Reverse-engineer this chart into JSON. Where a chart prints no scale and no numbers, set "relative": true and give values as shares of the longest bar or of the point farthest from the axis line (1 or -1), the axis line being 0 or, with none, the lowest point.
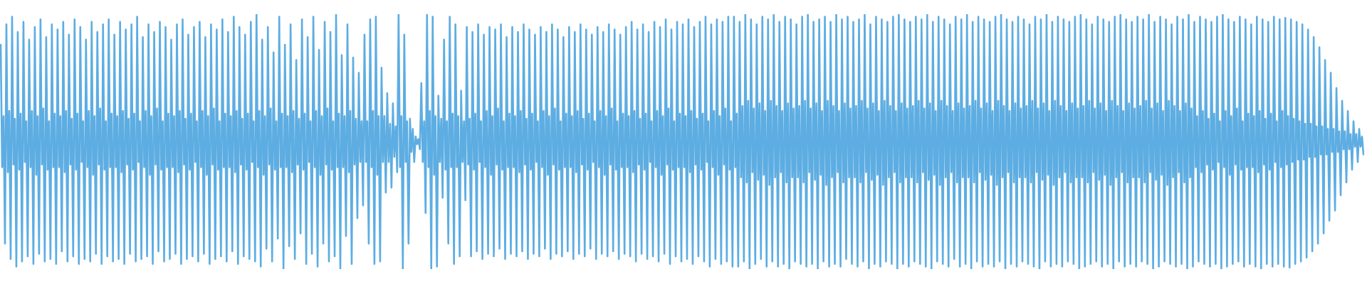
{
  "chart_data": {
    "type": "line",
    "relative": true,
    "color": "#5dade2",
    "categories": [
      null,
      null,
      null,
      null,
      null,
      null,
      null,
      null,
      null,
      null,
      null,
      null,
      null,
      null,
      null,
      null,
      null,
      null,
      null,
      null,
      null,
      null,
      null,
      null,
      null,
      null,
      null,
      null,
      null,
      null,
      null,
      null,
      null,
      null,
      null,
      null,
      null,
      null,
      null,
      null,
      null,
      null,
      null,
      null,
      null,
      null,
      null,
      null,
      null,
      null,
      null,
      null,
      null,
      null,
      null,
      null,
      null,
      null,
      null,
      null,
      null,
      null,
      null,
      null,
      null,
      null,
      null,
      null,
      null,
      null,
      null,
      null,
      null,
      null,
      null,
      null,
      null,
      null,
      null,
      null,
      null,
      null,
      null,
      null,
      null,
      null,
      null,
      null,
      null,
      null,
      null,
      null,
      null,
      null,
      null,
      null,
      null,
      null,
      null,
      null,
      null,
      null,
      null,
      null,
      null,
      null,
      null,
      null,
      null,
      null,
      null,
      null,
      null,
      null,
      null,
      null,
      null,
      null,
      null,
      null,
      null,
      null,
      null,
      null,
      null,
      null,
      null,
      null,
      null,
      null,
      null,
      null,
      null,
      null,
      null,
      null,
      null,
      null,
      null,
      null,
      null,
      null,
      null,
      null,
      null,
      null,
      null,
      null,
      null,
      null,
      null,
      null,
      null,
      null,
      null,
      null,
      null,
      null,
      null,
      null,
      null,
      null,
      null,
      null,
      null,
      null,
      null,
      null,
      null,
      null,
      null,
      null,
      null,
      null,
      null,
      null,
      null,
      null,
      null,
      null,
      null,
      null,
      null,
      null,
      null,
      null,
      null,
      null,
      null,
      null,
      null,
      null,
      null,
      null,
      null,
      null,
      null,
      null,
      null,
      null,
      null,
      null,
      null,
      null,
      null,
      null,
      null,
      null,
      null,
      null,
      null,
      null,
      null,
      null,
      null,
      null,
      null,
      null,
      null,
      null,
      null,
      null,
      null,
      null,
      null,
      null,
      null,
      null,
      null,
      null,
      null,
      null,
      null,
      null,
      null,
      null,
      null,
      null,
      null,
      null,
      null,
      null,
      null,
      null,
      null,
      null,
      null,
      null,
      null,
      null,
      null,
      null,
      null,
      null,
      null,
      null,
      null,
      null,
      null,
      null,
      null,
      null,
      null,
      null,
      null,
      null,
      null,
      null,
      null,
      null,
      null,
      null,
      null,
      null,
      null,
      null,
      null,
      null,
      null,
      null,
      null,
      null,
      null,
      null,
      null,
      null,
      null,
      null,
      null,
      null,
      null,
      null,
      null,
      null,
      null,
      null,
      null,
      null,
      null,
      null,
      null,
      null,
      null,
      null,
      null,
      null,
      null,
      null,
      null,
      null,
      null,
      null,
      null,
      null,
      null,
      null,
      null,
      null,
      null,
      null,
      null,
      null,
      null,
      null,
      null,
      null,
      null,
      null,
      null,
      null,
      null,
      null,
      null,
      null,
      null,
      null,
      null,
      null,
      null,
      null,
      null,
      null,
      null,
      null,
      null,
      null,
      null,
      null,
      null,
      null,
      null,
      null,
      null,
      null,
      null,
      null,
      null,
      null,
      null,
      null,
      null,
      null,
      null,
      null,
      null,
      null,
      null,
      null,
      null,
      null,
      null,
      null,
      null,
      null,
      null,
      null,
      null,
      null,
      null,
      null,
      null,
      null,
      null,
      null,
      null,
      null,
      null,
      null,
      null,
      null,
      null,
      null,
      null,
      null,
      null,
      null,
      null,
      null,
      null,
      null,
      null,
      null,
      null,
      null,
      null,
      null,
      null,
      null,
      null,
      null,
      null,
      null,
      null,
      null,
      null,
      null,
      null,
      null,
      null,
      null,
      null,
      null,
      null,
      null,
      null,
      null,
      null,
      null,
      null,
      null,
      null,
      null,
      null,
      null,
      null,
      null,
      null,
      null,
      null,
      null,
      null,
      null,
      null,
      null,
      null,
      null,
      null,
      null,
      null,
      null,
      null,
      null,
      null,
      null,
      null,
      null,
      null,
      null,
      null,
      null,
      null,
      null,
      null,
      null,
      null,
      null,
      null,
      null,
      null,
      null,
      null,
      null,
      null,
      null,
      null,
      null,
      null,
      null,
      null,
      null,
      null,
      null,
      null,
      null,
      null,
      null,
      null,
      null,
      null,
      null,
      null,
      null,
      null,
      null,
      null,
      null,
      null,
      null,
      null,
      null,
      null,
      null,
      null,
      null,
      null,
      null,
      null,
      null,
      null,
      null,
      null,
      null,
      null,
      null,
      null,
      null,
      null,
      null,
      null,
      null,
      null,
      null,
      null,
      null,
      null,
      null,
      null,
      null,
      null,
      null,
      null,
      null,
      null,
      null,
      null,
      null,
      null,
      null,
      null,
      null,
      null,
      null,
      null,
      null,
      null,
      null,
      null,
      null,
      null,
      null,
      null,
      null,
      null,
      null,
      null,
      null,
      null,
      null,
      null,
      null,
      null,
      null,
      null,
      null,
      null,
      null,
      null,
      null,
      null,
      null,
      null,
      null,
      null,
      null,
      null,
      null,
      null,
      null,
      null,
      null,
      null,
      null,
      null,
      null,
      null,
      null,
      null,
      null,
      null,
      null,
      null,
      null,
      null,
      null,
      null,
      null,
      null,
      null,
      null,
      null,
      null,
      null,
      null,
      null,
      null,
      null,
      null,
      null,
      null,
      null,
      null,
      null,
      null,
      null,
      null,
      null,
      null,
      null,
      null,
      null,
      null,
      null,
      null,
      null,
      null,
      null,
      null,
      null,
      null,
      null,
      null,
      null,
      null,
      null,
      null,
      null,
      null,
      null,
      null,
      null,
      null,
      null,
      null,
      null,
      null,
      null,
      null,
      null,
      null,
      null,
      null,
      null,
      null,
      null,
      null,
      null,
      null,
      null,
      null,
      null,
      null,
      null,
      null,
      null,
      null,
      null,
      null,
      null,
      null,
      null,
      null,
      null,
      null,
      null,
      null,
      null,
      null,
      null,
      null,
      null,
      null,
      null,
      null,
      null,
      null,
      null,
      null,
      null,
      null,
      null,
      null,
      null,
      null,
      null,
      null,
      null,
      null,
      null,
      null,
      null,
      null,
      null,
      null,
      null,
      null,
      null,
      null,
      null,
      null,
      null,
      null,
      null,
      null,
      null,
      null,
      null,
      null,
      null,
      null,
      null,
      null,
      null,
      null,
      null,
      null,
      null,
      null,
      null,
      null,
      null,
      null,
      null,
      null,
      null,
      null,
      null,
      null,
      null,
      null,
      null,
      null,
      null,
      null,
      null,
      null,
      null,
      null,
      null,
      null,
      null,
      null,
      null,
      null,
      null,
      null,
      null,
      null,
      null,
      null,
      null,
      null,
      null,
      null,
      null,
      null,
      null,
      null,
      null,
      null,
      null,
      null,
      null,
      null,
      null,
      null,
      null,
      null,
      null,
      null,
      null,
      null,
      null,
      null,
      null,
      null,
      null,
      null,
      null,
      null,
      null,
      null,
      null,
      null,
      null,
      null,
      null,
      null,
      null,
      null,
      null,
      null,
      null,
      null,
      null,
      null,
      null,
      null,
      null,
      null,
      null,
      null,
      null,
      null,
      null,
      null,
      null,
      null,
      null,
      null,
      null,
      null,
      null,
      null,
      null,
      null,
      null,
      null,
      null,
      null,
      null,
      null,
      null,
      null,
      null,
      null,
      null,
      null,
      null,
      null,
      null,
      null,
      null,
      null,
      null,
      null,
      null,
      null,
      null,
      null,
      null,
      null,
      null,
      null,
      null,
      null,
      null,
      null,
      null,
      null,
      null,
      null,
      null,
      null,
      null,
      null,
      null,
      null,
      null,
      null,
      null,
      null,
      null,
      null,
      null,
      null,
      null,
      null,
      null,
      null,
      null,
      null,
      null,
      null,
      null,
      null,
      null,
      null,
      null,
      null,
      null,
      null,
      null,
      null,
      null,
      null,
      null,
      null,
      null,
      null,
      null,
      null,
      null,
      null,
      null,
      null,
      null,
      null,
      null,
      null,
      null,
      null,
      null,
      null,
      null,
      null,
      null,
      null,
      null,
      null,
      null,
      null,
      null,
      null,
      null,
      null,
      null,
      null,
      null,
      null,
      null,
      null,
      null,
      null,
      null,
      null,
      null,
      null,
      null,
      null,
      null,
      null,
      null,
      null,
      null,
      null,
      null,
      null,
      null,
      null,
      null,
      null,
      null,
      null,
      null,
      null,
      null,
      null,
      null,
      null,
      null
    ],
    "values": [
      0.88,
      0.4,
      0.6,
      0.1,
      0.96,
      0.38,
      0.62,
      0.04,
      0.99,
      0.41,
      0.59,
      0.01,
      0.93,
      0.39,
      0.61,
      0.03,
      0.97,
      0.42,
      0.58,
      0.05,
      0.9,
      0.4,
      0.62,
      0.02,
      0.95,
      0.37,
      0.6,
      0.06,
      0.98,
      0.41,
      0.63,
      0.03,
      0.91,
      0.39,
      0.58,
      0.04,
      0.96,
      0.4,
      0.61,
      0.02,
      0.94,
      0.4,
      0.6,
      0.07,
      0.97,
      0.38,
      0.62,
      0.03,
      0.92,
      0.41,
      0.59,
      0.05,
      0.98,
      0.39,
      0.61,
      0.02,
      0.95,
      0.42,
      0.58,
      0.04,
      0.9,
      0.4,
      0.62,
      0.03,
      0.97,
      0.37,
      0.6,
      0.06,
      0.93,
      0.41,
      0.63,
      0.02,
      0.96,
      0.39,
      0.58,
      0.05,
      0.98,
      0.4,
      0.61,
      0.03,
      0.92,
      0.4,
      0.6,
      0.04,
      0.97,
      0.38,
      0.62,
      0.02,
      0.94,
      0.41,
      0.59,
      0.06,
      0.96,
      0.39,
      0.61,
      0.03,
      0.99,
      0.42,
      0.58,
      0.04,
      0.91,
      0.4,
      0.62,
      0.05,
      0.96,
      0.37,
      0.6,
      0.02,
      0.93,
      0.41,
      0.63,
      0.07,
      0.97,
      0.39,
      0.58,
      0.03,
      0.95,
      0.4,
      0.61,
      0.04,
      0.9,
      0.4,
      0.6,
      0.06,
      0.96,
      0.38,
      0.62,
      0.02,
      0.98,
      0.41,
      0.59,
      0.04,
      0.92,
      0.39,
      0.61,
      0.05,
      0.95,
      0.42,
      0.58,
      0.03,
      0.97,
      0.4,
      0.62,
      0.06,
      0.91,
      0.37,
      0.6,
      0.02,
      0.96,
      0.41,
      0.63,
      0.04,
      0.94,
      0.39,
      0.58,
      0.05,
      0.98,
      0.4,
      0.61,
      0.03,
      0.93,
      0.4,
      0.6,
      0.07,
      0.99,
      0.38,
      0.62,
      0.02,
      0.95,
      0.41,
      0.59,
      0.05,
      0.92,
      0.39,
      0.61,
      0.04,
      0.97,
      0.42,
      0.58,
      0.03,
      1.0,
      0.4,
      0.62,
      0.01,
      0.9,
      0.37,
      0.6,
      0.08,
      0.95,
      0.41,
      0.63,
      0.03,
      0.85,
      0.39,
      0.58,
      0.12,
      0.99,
      0.4,
      0.61,
      0.0,
      0.88,
      0.4,
      0.6,
      0.09,
      0.96,
      0.38,
      0.62,
      0.04,
      0.82,
      0.41,
      0.59,
      0.14,
      0.98,
      0.39,
      0.61,
      0.02,
      0.91,
      0.42,
      0.58,
      0.06,
      0.99,
      0.4,
      0.62,
      0.01,
      0.86,
      0.37,
      0.6,
      0.1,
      0.97,
      0.41,
      0.63,
      0.03,
      0.93,
      0.39,
      0.58,
      0.05,
      1.0,
      0.4,
      0.61,
      0.0,
      0.84,
      0.4,
      0.6,
      0.13,
      0.96,
      0.38,
      0.62,
      0.02,
      0.83,
      0.41,
      0.59,
      0.2,
      0.77,
      0.42,
      0.58,
      0.25,
      0.92,
      0.42,
      0.58,
      0.1,
      0.98,
      0.4,
      0.62,
      0.02,
      0.99,
      0.37,
      0.6,
      0.03,
      0.79,
      0.42,
      0.6,
      0.3,
      0.69,
      0.42,
      0.57,
      0.32,
      0.65,
      0.44,
      0.56,
      0.38,
      1.0,
      0.4,
      0.6,
      0.0,
      0.92,
      0.42,
      0.58,
      0.1,
      0.59,
      0.46,
      0.55,
      0.42,
      0.52,
      0.49,
      0.51,
      0.47,
      0.73,
      0.42,
      0.58,
      0.22,
      1.0,
      0.4,
      0.62,
      0.0,
      0.99,
      0.37,
      0.6,
      0.01,
      0.68,
      0.42,
      0.59,
      0.28,
      0.9,
      0.39,
      0.58,
      0.1,
      0.99,
      0.4,
      0.61,
      0.02,
      0.96,
      0.4,
      0.6,
      0.05,
      0.7,
      0.42,
      0.58,
      0.27,
      0.95,
      0.41,
      0.59,
      0.05,
      0.93,
      0.39,
      0.61,
      0.07,
      0.96,
      0.42,
      0.58,
      0.04,
      0.92,
      0.4,
      0.62,
      0.06,
      0.95,
      0.37,
      0.6,
      0.05,
      0.94,
      0.41,
      0.63,
      0.08,
      0.96,
      0.39,
      0.58,
      0.04,
      0.91,
      0.4,
      0.61,
      0.06,
      0.95,
      0.4,
      0.6,
      0.05,
      0.93,
      0.38,
      0.62,
      0.07,
      0.96,
      0.41,
      0.59,
      0.04,
      0.94,
      0.39,
      0.61,
      0.06,
      0.92,
      0.42,
      0.58,
      0.05,
      0.95,
      0.4,
      0.62,
      0.08,
      0.93,
      0.37,
      0.6,
      0.04,
      0.96,
      0.41,
      0.63,
      0.06,
      0.94,
      0.39,
      0.58,
      0.05,
      0.91,
      0.4,
      0.61,
      0.07,
      0.95,
      0.4,
      0.6,
      0.04,
      0.93,
      0.38,
      0.62,
      0.06,
      0.96,
      0.41,
      0.59,
      0.05,
      0.94,
      0.39,
      0.61,
      0.08,
      0.92,
      0.42,
      0.58,
      0.04,
      0.95,
      0.4,
      0.62,
      0.06,
      0.93,
      0.37,
      0.6,
      0.05,
      0.96,
      0.41,
      0.63,
      0.07,
      0.94,
      0.39,
      0.58,
      0.04,
      0.92,
      0.4,
      0.61,
      0.06,
      0.95,
      0.4,
      0.6,
      0.05,
      0.97,
      0.38,
      0.62,
      0.03,
      0.94,
      0.41,
      0.59,
      0.06,
      0.96,
      0.39,
      0.61,
      0.04,
      0.93,
      0.42,
      0.58,
      0.05,
      0.97,
      0.4,
      0.62,
      0.03,
      0.95,
      0.37,
      0.6,
      0.06,
      0.98,
      0.41,
      0.63,
      0.02,
      0.94,
      0.39,
      0.58,
      0.05,
      0.97,
      0.4,
      0.61,
      0.03,
      0.96,
      0.4,
      0.6,
      0.04,
      0.98,
      0.38,
      0.62,
      0.02,
      0.95,
      0.41,
      0.59,
      0.05,
      0.97,
      0.39,
      0.61,
      0.03,
      0.99,
      0.42,
      0.58,
      0.01,
      0.96,
      0.4,
      0.62,
      0.04,
      0.98,
      0.37,
      0.6,
      0.02,
      0.97,
      0.41,
      0.63,
      0.03,
      0.99,
      0.39,
      0.58,
      0.01,
      0.99,
      0.4,
      0.61,
      0.01,
      0.97,
      0.36,
      0.64,
      0.03,
      1.0,
      0.34,
      0.66,
      0.0,
      0.98,
      0.38,
      0.63,
      0.02,
      0.96,
      0.35,
      0.65,
      0.04,
      0.99,
      0.37,
      0.62,
      0.01,
      0.98,
      0.33,
      0.66,
      0.03,
      1.0,
      0.36,
      0.64,
      0.01,
      0.97,
      0.38,
      0.62,
      0.02,
      0.99,
      0.34,
      0.65,
      0.0,
      0.98,
      0.36,
      0.63,
      0.03,
      0.96,
      0.36,
      0.64,
      0.02,
      0.99,
      0.34,
      0.66,
      0.01,
      1.0,
      0.38,
      0.63,
      0.02,
      0.97,
      0.35,
      0.65,
      0.0,
      0.98,
      0.37,
      0.62,
      0.03,
      0.99,
      0.33,
      0.66,
      0.01,
      0.97,
      0.36,
      0.64,
      0.02,
      1.0,
      0.38,
      0.62,
      0.01,
      0.98,
      0.34,
      0.65,
      0.04,
      0.99,
      0.36,
      0.63,
      0.02,
      0.97,
      0.36,
      0.64,
      0.01,
      0.98,
      0.34,
      0.66,
      0.03,
      1.0,
      0.38,
      0.63,
      0.0,
      0.96,
      0.35,
      0.65,
      0.02,
      0.99,
      0.37,
      0.62,
      0.01,
      0.98,
      0.33,
      0.66,
      0.03,
      0.97,
      0.36,
      0.64,
      0.02,
      0.99,
      0.38,
      0.62,
      0.0,
      1.0,
      0.34,
      0.65,
      0.02,
      0.98,
      0.36,
      0.63,
      0.01,
      0.97,
      0.36,
      0.64,
      0.03,
      0.99,
      0.34,
      0.66,
      0.02,
      0.98,
      0.38,
      0.63,
      0.01,
      1.0,
      0.35,
      0.65,
      0.0,
      0.97,
      0.37,
      0.62,
      0.03,
      0.99,
      0.33,
      0.66,
      0.02,
      0.98,
      0.36,
      0.64,
      0.01,
      0.96,
      0.38,
      0.62,
      0.04,
      0.99,
      0.34,
      0.65,
      0.01,
      0.98,
      0.36,
      0.63,
      0.02,
      1.0,
      0.36,
      0.64,
      0.0,
      0.97,
      0.34,
      0.66,
      0.03,
      0.99,
      0.38,
      0.63,
      0.01,
      0.98,
      0.35,
      0.65,
      0.02,
      0.97,
      0.37,
      0.62,
      0.01,
      0.99,
      0.33,
      0.66,
      0.03,
      1.0,
      0.36,
      0.64,
      0.0,
      0.98,
      0.38,
      0.62,
      0.02,
      0.97,
      0.34,
      0.65,
      0.01,
      0.99,
      0.36,
      0.63,
      0.03,
      0.98,
      0.36,
      0.64,
      0.02,
      0.96,
      0.34,
      0.66,
      0.01,
      0.99,
      0.38,
      0.63,
      0.0,
      0.98,
      0.35,
      0.65,
      0.03,
      1.0,
      0.37,
      0.62,
      0.01,
      0.97,
      0.33,
      0.66,
      0.02,
      0.99,
      0.36,
      0.64,
      0.01,
      0.98,
      0.38,
      0.62,
      0.03,
      0.97,
      0.34,
      0.65,
      0.02,
      0.99,
      0.36,
      0.63,
      0.0,
      1.0,
      0.36,
      0.64,
      0.01,
      0.98,
      0.34,
      0.66,
      0.02,
      0.96,
      0.38,
      0.63,
      0.03,
      0.99,
      0.35,
      0.65,
      0.01,
      0.98,
      0.37,
      0.62,
      0.02,
      0.97,
      0.33,
      0.66,
      0.0,
      0.99,
      0.36,
      0.64,
      0.03,
      1.0,
      0.38,
      0.62,
      0.01,
      0.98,
      0.34,
      0.65,
      0.02,
      0.97,
      0.36,
      0.63,
      0.01,
      0.99,
      0.36,
      0.64,
      0.03,
      0.98,
      0.34,
      0.66,
      0.02,
      1.0,
      0.38,
      0.63,
      0.0,
      0.97,
      0.35,
      0.65,
      0.01,
      0.99,
      0.37,
      0.62,
      0.03,
      0.98,
      0.33,
      0.66,
      0.02,
      0.96,
      0.36,
      0.64,
      0.01,
      0.99,
      0.38,
      0.62,
      0.02,
      0.98,
      0.34,
      0.65,
      0.0,
      1.0,
      0.36,
      0.63,
      0.01,
      0.97,
      0.4,
      0.6,
      0.03,
      0.99,
      0.38,
      0.62,
      0.02,
      0.98,
      0.41,
      0.59,
      0.01,
      0.97,
      0.39,
      0.61,
      0.02,
      0.99,
      0.42,
      0.58,
      0.0,
      1.0,
      0.4,
      0.62,
      0.01,
      0.98,
      0.37,
      0.6,
      0.02,
      0.97,
      0.41,
      0.63,
      0.03,
      0.99,
      0.39,
      0.58,
      0.01,
      0.98,
      0.4,
      0.61,
      0.02,
      0.96,
      0.4,
      0.6,
      0.01,
      0.99,
      0.38,
      0.62,
      0.0,
      0.98,
      0.41,
      0.59,
      0.02,
      0.97,
      0.39,
      0.61,
      0.01,
      0.99,
      0.42,
      0.58,
      0.02,
      0.98,
      0.4,
      0.62,
      0.01,
      0.986,
      0.41,
      0.6,
      0.006,
      0.98,
      0.42,
      0.59,
      0.02,
      0.97,
      0.43,
      0.58,
      0.03,
      0.96,
      0.43,
      0.57,
      0.045,
      0.94,
      0.44,
      0.57,
      0.07,
      0.91,
      0.44,
      0.56,
      0.1,
      0.87,
      0.45,
      0.56,
      0.14,
      0.82,
      0.45,
      0.55,
      0.19,
      0.77,
      0.46,
      0.55,
      0.23,
      0.71,
      0.46,
      0.54,
      0.29,
      0.66,
      0.47,
      0.54,
      0.34,
      0.62,
      0.47,
      0.53,
      0.39,
      0.58,
      0.48,
      0.53,
      0.42,
      0.55,
      0.48,
      0.52,
      0.45
    ]
  }
}
